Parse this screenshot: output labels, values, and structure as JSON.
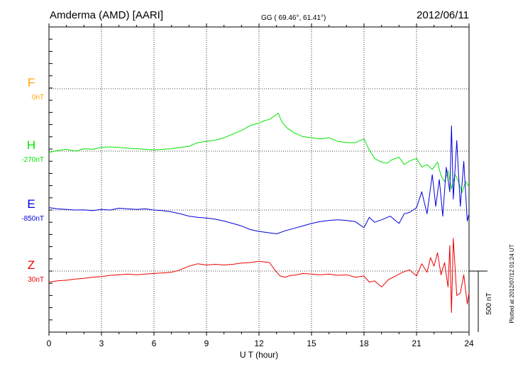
{
  "header": {
    "station": "Amderma (AMD)  [AARI]",
    "coords": "GG ( 69.46°,  61.41°)",
    "date": "2012/06/11"
  },
  "footer": {
    "plotted": "Plotted at 2012/07/12 01:24  UT",
    "scale": "500 nT"
  },
  "chart_data": {
    "type": "line",
    "title": "Amderma (AMD)  [AARI]",
    "xlabel": "U T (hour)",
    "ylabel": "",
    "xlim": [
      0,
      24
    ],
    "xticks": [
      "0",
      "3",
      "6",
      "9",
      "12",
      "15",
      "18",
      "21",
      "24"
    ],
    "grid": true,
    "scale_bar_nT": 500,
    "series": [
      {
        "name": "F",
        "baseline_label": "0nT",
        "color": "#ffa500",
        "x": [],
        "y": []
      },
      {
        "name": "H",
        "baseline_label": "-270nT",
        "color": "#00e600",
        "x": [
          0,
          0.5,
          1,
          1.5,
          2,
          2.5,
          3,
          3.5,
          4,
          4.5,
          5,
          5.5,
          6,
          6.5,
          7,
          7.5,
          8,
          8.5,
          9,
          9.5,
          10,
          10.5,
          11,
          11.5,
          12,
          12.3,
          12.6,
          12.9,
          13.1,
          13.3,
          13.6,
          14,
          14.5,
          15,
          15.5,
          16,
          16.5,
          17,
          17.5,
          18,
          18.3,
          18.6,
          19,
          19.3,
          19.6,
          20,
          20.3,
          20.6,
          21,
          21.3,
          21.6,
          21.9,
          22.2,
          22.4,
          22.6,
          22.8,
          23,
          23.2,
          23.4,
          23.6,
          23.8,
          24
        ],
        "y": [
          -280,
          -265,
          -255,
          -270,
          -250,
          -255,
          -240,
          -235,
          -240,
          -245,
          -250,
          -255,
          -260,
          -255,
          -250,
          -240,
          -230,
          -200,
          -190,
          -180,
          -160,
          -130,
          -100,
          -60,
          -40,
          -20,
          -10,
          20,
          40,
          -30,
          -80,
          -120,
          -150,
          -160,
          -170,
          -160,
          -190,
          -200,
          -200,
          -170,
          -260,
          -330,
          -360,
          -370,
          -340,
          -320,
          -380,
          -350,
          -330,
          -400,
          -380,
          -420,
          -360,
          -470,
          -520,
          -430,
          -580,
          -460,
          -520,
          -610,
          -520,
          -560
        ]
      },
      {
        "name": "E",
        "baseline_label": "-850nT",
        "color": "#0000dd",
        "x": [
          0,
          0.5,
          1,
          1.5,
          2,
          2.5,
          3,
          3.5,
          4,
          4.5,
          5,
          5.5,
          6,
          6.5,
          7,
          7.5,
          8,
          8.5,
          9,
          9.5,
          10,
          10.5,
          11,
          11.5,
          12,
          12.5,
          13,
          13.5,
          14,
          14.5,
          15,
          15.5,
          16,
          16.5,
          17,
          17.5,
          18,
          18.3,
          18.6,
          19,
          19.5,
          20,
          20.3,
          20.6,
          21,
          21.3,
          21.6,
          21.9,
          22.1,
          22.3,
          22.5,
          22.7,
          22.9,
          23.0,
          23.1,
          23.3,
          23.5,
          23.7,
          23.9,
          24
        ],
        "y": [
          -830,
          -840,
          -845,
          -850,
          -848,
          -855,
          -845,
          -850,
          -835,
          -840,
          -845,
          -840,
          -850,
          -855,
          -865,
          -880,
          -900,
          -910,
          -915,
          -925,
          -940,
          -960,
          -980,
          -1010,
          -1025,
          -1035,
          -1045,
          -1020,
          -1000,
          -980,
          -960,
          -945,
          -935,
          -930,
          -935,
          -945,
          -995,
          -910,
          -950,
          -930,
          -900,
          -960,
          -880,
          -870,
          -830,
          -700,
          -880,
          -560,
          -820,
          -600,
          -900,
          -500,
          -700,
          -160,
          -760,
          -280,
          -820,
          -450,
          -940,
          -880
        ]
      },
      {
        "name": "Z",
        "baseline_label": "30nT",
        "color": "#ee0000",
        "x": [
          0,
          0.5,
          1,
          1.5,
          2,
          2.5,
          3,
          3.5,
          4,
          4.5,
          5,
          5.5,
          6,
          6.5,
          7,
          7.5,
          8,
          8.5,
          9,
          9.5,
          10,
          10.5,
          11,
          11.5,
          12,
          12.3,
          12.6,
          12.9,
          13.2,
          13.5,
          13.8,
          14,
          14.5,
          15,
          15.5,
          16,
          16.5,
          17,
          17.5,
          18,
          18.3,
          18.6,
          19,
          19.4,
          19.8,
          20.2,
          20.6,
          21,
          21.3,
          21.6,
          21.8,
          22,
          22.2,
          22.4,
          22.6,
          22.8,
          22.9,
          23.0,
          23.1,
          23.3,
          23.5,
          23.7,
          23.9,
          24
        ],
        "y": [
          -60,
          -50,
          -45,
          -35,
          -30,
          -20,
          -15,
          -5,
          0,
          5,
          0,
          5,
          10,
          15,
          20,
          40,
          70,
          90,
          80,
          85,
          80,
          85,
          95,
          100,
          110,
          105,
          100,
          40,
          -10,
          -20,
          -5,
          -5,
          10,
          5,
          0,
          5,
          -5,
          0,
          -20,
          -10,
          -60,
          -50,
          -100,
          -40,
          -10,
          20,
          40,
          -10,
          90,
          20,
          140,
          70,
          180,
          0,
          100,
          -100,
          240,
          -310,
          300,
          -170,
          -150,
          0,
          -240,
          -150
        ]
      }
    ]
  }
}
